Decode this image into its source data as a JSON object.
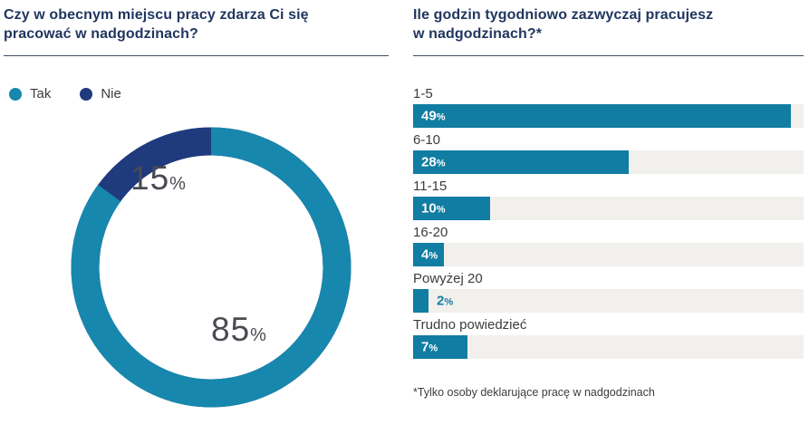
{
  "chart_data": [
    {
      "type": "pie",
      "subtype": "donut",
      "title": "Czy w obecnym miejscu pracy zdarza Ci się pracować w nadgodzinach?",
      "title_lines": [
        "Czy w obecnym miejscu pracy zdarza Ci się",
        "pracować w nadgodzinach?"
      ],
      "labels": [
        "Tak",
        "Nie"
      ],
      "values": [
        85,
        15
      ],
      "colors": [
        "#1787ad",
        "#1f3a7d"
      ],
      "value_suffix": "%",
      "legend_position": "top-left",
      "start_angle_deg": 0,
      "direction": "clockwise"
    },
    {
      "type": "bar",
      "orientation": "horizontal",
      "title": "Ile godzin tygodniowo zazwyczaj pracujesz w nadgodzinach?*",
      "title_lines": [
        "Ile godzin tygodniowo zazwyczaj pracujesz",
        "w nadgodzinach?*"
      ],
      "categories": [
        "1-5",
        "6-10",
        "11-15",
        "16-20",
        "Powyżej 20",
        "Trudno powiedzieć"
      ],
      "values": [
        49,
        28,
        10,
        4,
        2,
        7
      ],
      "value_suffix": "%",
      "xlim": [
        0,
        50.7
      ],
      "bar_color": "#117da3",
      "track_color": "#f2f0ed",
      "value_label_positions": [
        "inside",
        "inside",
        "inside",
        "inside",
        "outside",
        "inside"
      ],
      "footnote": "*Tylko osoby deklarujące pracę w nadgodzinach",
      "grid": false,
      "legend_position": "none"
    }
  ],
  "theme": {
    "background": "#ffffff",
    "title_color": "#21365f",
    "divider_color": "#3d4b61",
    "text_color": "#3c3c3c",
    "donut_value_color": "#4a4a53"
  }
}
